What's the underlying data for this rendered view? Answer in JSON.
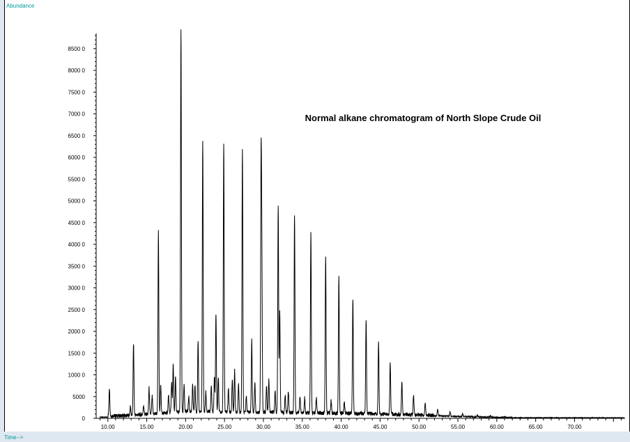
{
  "chart_data": {
    "type": "line",
    "title": "Normal alkane chromatogram  of North Slope Crude Oil",
    "ylabel": "Abundance",
    "xlabel": "Time-->",
    "xlim": [
      8.5,
      76.5
    ],
    "ylim": [
      0,
      88500
    ],
    "x_ticks": [
      "10.00",
      "15.00",
      "20.00",
      "25.00",
      "30.00",
      "35.00",
      "40.00",
      "45.00",
      "50.00",
      "55.00",
      "60.00",
      "65.00",
      "70.00"
    ],
    "y_ticks": [
      "0",
      "5000",
      "1000 0",
      "1500 0",
      "2000 0",
      "2500 0",
      "3000 0",
      "3500 0",
      "4000 0",
      "4500 0",
      "5000 0",
      "5500 0",
      "6000 0",
      "6500 0",
      "7000 0",
      "7500 0",
      "8000 0",
      "8500 0"
    ],
    "y_tick_values": [
      0,
      5000,
      10000,
      15000,
      20000,
      25000,
      30000,
      35000,
      40000,
      45000,
      50000,
      55000,
      60000,
      65000,
      70000,
      75000,
      80000,
      85000
    ],
    "grid": false,
    "legend": "none",
    "series": [
      {
        "peaks": [
          [
            10.2,
            6500
          ],
          [
            12.9,
            2000
          ],
          [
            13.3,
            16500
          ],
          [
            14.6,
            2200
          ],
          [
            15.3,
            6000
          ],
          [
            15.7,
            4000
          ],
          [
            16.5,
            41800
          ],
          [
            16.8,
            6500
          ],
          [
            17.8,
            4000
          ],
          [
            18.2,
            7000
          ],
          [
            18.4,
            11000
          ],
          [
            18.7,
            8000
          ],
          [
            19.4,
            88000
          ],
          [
            19.8,
            6500
          ],
          [
            20.4,
            3500
          ],
          [
            20.9,
            6000
          ],
          [
            21.2,
            6000
          ],
          [
            21.6,
            16000
          ],
          [
            22.2,
            62000
          ],
          [
            22.6,
            4500
          ],
          [
            23.3,
            6000
          ],
          [
            23.7,
            8000
          ],
          [
            23.9,
            22500
          ],
          [
            24.2,
            8000
          ],
          [
            24.9,
            61500
          ],
          [
            25.5,
            5500
          ],
          [
            26.0,
            7500
          ],
          [
            26.3,
            9500
          ],
          [
            26.8,
            6500
          ],
          [
            27.3,
            60500
          ],
          [
            27.8,
            3500
          ],
          [
            28.5,
            16500
          ],
          [
            28.9,
            7000
          ],
          [
            29.7,
            56000
          ],
          [
            29.8,
            31000
          ],
          [
            30.4,
            6000
          ],
          [
            30.7,
            7500
          ],
          [
            31.5,
            5000
          ],
          [
            31.9,
            47500
          ],
          [
            32.1,
            23000
          ],
          [
            32.8,
            4000
          ],
          [
            33.2,
            5000
          ],
          [
            34.0,
            45500
          ],
          [
            34.7,
            4000
          ],
          [
            35.3,
            3500
          ],
          [
            36.1,
            41500
          ],
          [
            36.8,
            3500
          ],
          [
            38.0,
            36000
          ],
          [
            38.7,
            3000
          ],
          [
            39.7,
            31500
          ],
          [
            40.4,
            2500
          ],
          [
            41.5,
            26500
          ],
          [
            43.2,
            21500
          ],
          [
            44.8,
            16500
          ],
          [
            46.3,
            12000
          ],
          [
            47.8,
            7500
          ],
          [
            49.3,
            4500
          ],
          [
            50.8,
            2800
          ],
          [
            52.4,
            1500
          ],
          [
            54.0,
            1000
          ],
          [
            55.6,
            600
          ],
          [
            57.5,
            400
          ],
          [
            59.2,
            300
          ],
          [
            61.0,
            200
          ]
        ]
      }
    ]
  }
}
